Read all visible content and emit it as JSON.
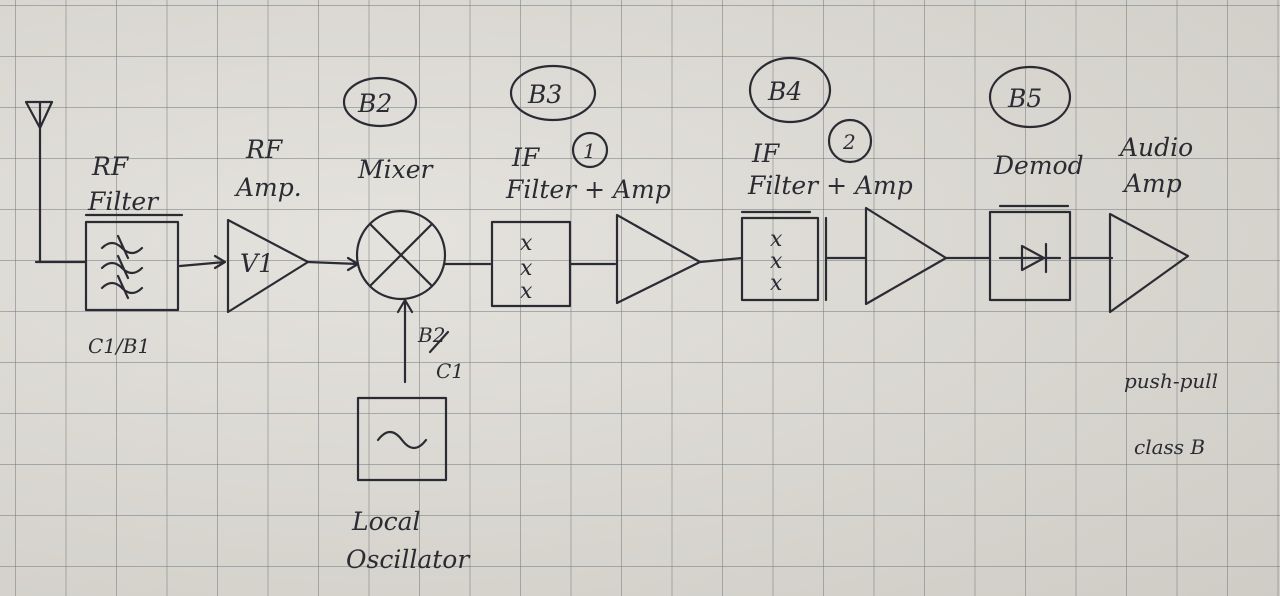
{
  "diagram": {
    "blocks": {
      "rf_filter": {
        "label_line1": "RF",
        "label_line2": "Filter",
        "note": "C1/B1"
      },
      "rf_amp": {
        "label_line1": "RF",
        "label_line2": "Amp.",
        "symbol": "V1"
      },
      "mixer": {
        "label": "Mixer",
        "tag": "B2",
        "lo_note_line1": "B2",
        "lo_note_line2": "C1"
      },
      "local_osc": {
        "label_line1": "Local",
        "label_line2": "Oscillator"
      },
      "if_stage_1": {
        "label_line1": "IF",
        "label_line2": "Filter + Amp",
        "tag": "B3",
        "number": "1"
      },
      "if_stage_2": {
        "label_line1": "IF",
        "label_line2": "Filter + Amp",
        "tag": "B4",
        "number": "2"
      },
      "demod": {
        "label": "Demod",
        "tag": "B5"
      },
      "audio_amp": {
        "label_line1": "Audio",
        "label_line2": "Amp",
        "note_line1": "push-pull",
        "note_line2": "class B"
      }
    }
  }
}
